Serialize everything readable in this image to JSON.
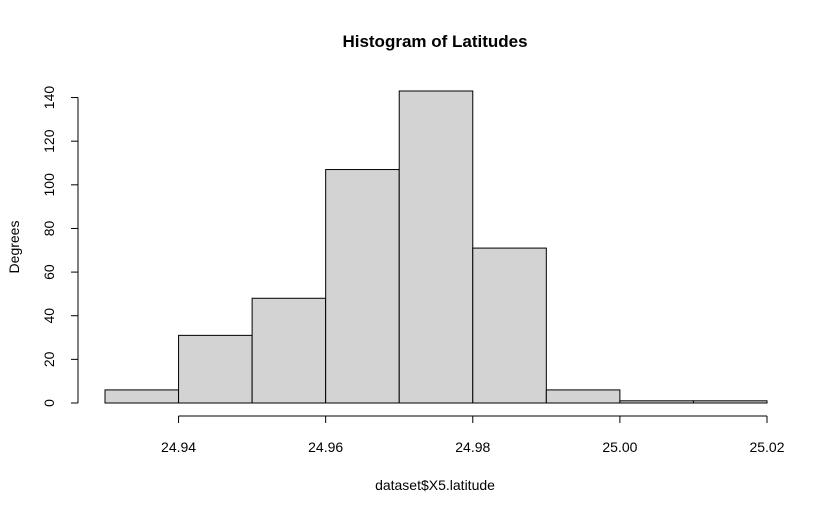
{
  "chart_data": {
    "type": "bar",
    "title": "Histogram of Latitudes",
    "xlabel": "dataset$X5.latitude",
    "ylabel": "Degrees",
    "bin_edges": [
      24.93,
      24.94,
      24.95,
      24.96,
      24.97,
      24.98,
      24.99,
      25.0,
      25.01,
      25.02
    ],
    "values": [
      6,
      31,
      48,
      107,
      143,
      71,
      6,
      1,
      1
    ],
    "xlim": [
      24.93,
      25.02
    ],
    "ylim": [
      0,
      143
    ],
    "x_ticks": [
      24.94,
      24.96,
      24.98,
      25.0,
      25.02
    ],
    "x_tick_labels": [
      "24.94",
      "24.96",
      "24.98",
      "25.00",
      "25.02"
    ],
    "y_ticks": [
      0,
      20,
      40,
      60,
      80,
      100,
      120,
      140
    ],
    "y_tick_labels": [
      "0",
      "20",
      "40",
      "60",
      "80",
      "100",
      "120",
      "140"
    ],
    "bar_color": "#d3d3d3",
    "grid": false
  }
}
